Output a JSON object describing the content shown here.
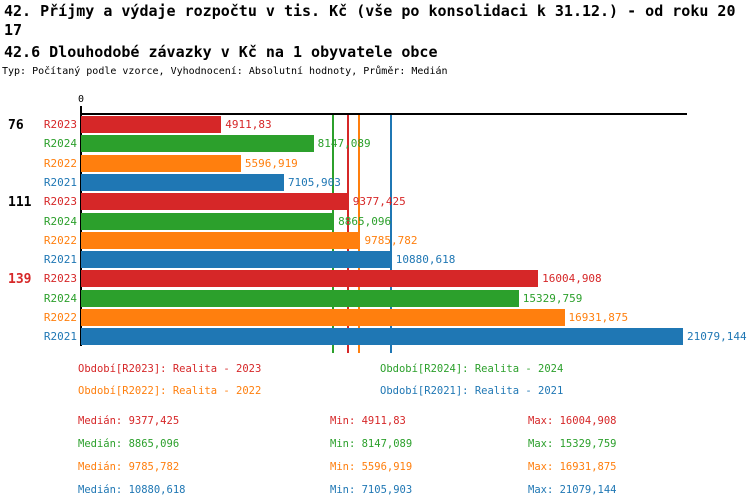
{
  "header": {
    "title_line1": "42. Příjmy a výdaje rozpočtu v tis. Kč (vše po konsolidaci k 31.12.) - od roku 20",
    "title_line2": "17",
    "subtitle": "42.6 Dlouhodobé závazky v Kč na 1 obyvatele obce",
    "meta": "Typ: Počítaný podle vzorce, Vyhodnocení: Absolutní hodnoty, Průměr: Medián"
  },
  "chart_data": {
    "type": "bar",
    "orientation": "horizontal",
    "title": "42. Příjmy a výdaje rozpočtu v tis. Kč (vše po konsolidaci k 31.12.) - od roku 2017",
    "subtitle": "42.6 Dlouhodobé závazky v Kč na 1 obyvatele obce",
    "xlabel": "",
    "ylabel": "",
    "x_axis": {
      "zero_label": "0",
      "xlim": [
        0,
        21250
      ],
      "grid": false
    },
    "series_order": [
      "R2023",
      "R2024",
      "R2022",
      "R2021"
    ],
    "series_colors": {
      "R2023": "#d62728",
      "R2024": "#2ca02c",
      "R2022": "#ff7f0e",
      "R2021": "#1f77b4"
    },
    "groups": [
      {
        "label": "76",
        "label_color": "#000000",
        "bars": [
          {
            "series": "R2023",
            "value": 4911.83,
            "value_label": "4911,83"
          },
          {
            "series": "R2024",
            "value": 8147.089,
            "value_label": "8147,089"
          },
          {
            "series": "R2022",
            "value": 5596.919,
            "value_label": "5596,919"
          },
          {
            "series": "R2021",
            "value": 7105.903,
            "value_label": "7105,903"
          }
        ]
      },
      {
        "label": "111",
        "label_color": "#000000",
        "bars": [
          {
            "series": "R2023",
            "value": 9377.425,
            "value_label": "9377,425"
          },
          {
            "series": "R2024",
            "value": 8865.096,
            "value_label": "8865,096"
          },
          {
            "series": "R2022",
            "value": 9785.782,
            "value_label": "9785,782"
          },
          {
            "series": "R2021",
            "value": 10880.618,
            "value_label": "10880,618"
          }
        ]
      },
      {
        "label": "139",
        "label_color": "#d62728",
        "bars": [
          {
            "series": "R2023",
            "value": 16004.908,
            "value_label": "16004,908"
          },
          {
            "series": "R2024",
            "value": 15329.759,
            "value_label": "15329,759"
          },
          {
            "series": "R2022",
            "value": 16931.875,
            "value_label": "16931,875"
          },
          {
            "series": "R2021",
            "value": 21079.144,
            "value_label": "21079,144"
          }
        ]
      }
    ],
    "median_lines": [
      {
        "series": "R2024",
        "value": 8865.096,
        "color": "#2ca02c"
      },
      {
        "series": "R2023",
        "value": 9377.425,
        "color": "#d62728"
      },
      {
        "series": "R2022",
        "value": 9785.782,
        "color": "#ff7f0e"
      },
      {
        "series": "R2021",
        "value": 10880.618,
        "color": "#1f77b4"
      }
    ]
  },
  "legend": {
    "items": [
      {
        "label": "Období[R2023]: Realita - 2023",
        "color": "#d62728"
      },
      {
        "label": "Období[R2024]: Realita - 2024",
        "color": "#2ca02c"
      },
      {
        "label": "Období[R2022]: Realita - 2022",
        "color": "#ff7f0e"
      },
      {
        "label": "Období[R2021]: Realita - 2021",
        "color": "#1f77b4"
      }
    ]
  },
  "stats": {
    "rows": [
      {
        "median": "Medián: 9377,425",
        "min": "Min: 4911,83",
        "max": "Max: 16004,908",
        "color": "#d62728"
      },
      {
        "median": "Medián: 8865,096",
        "min": "Min: 8147,089",
        "max": "Max: 15329,759",
        "color": "#2ca02c"
      },
      {
        "median": "Medián: 9785,782",
        "min": "Min: 5596,919",
        "max": "Max: 16931,875",
        "color": "#ff7f0e"
      },
      {
        "median": "Medián: 10880,618",
        "min": "Min: 7105,903",
        "max": "Max: 21079,144",
        "color": "#1f77b4"
      }
    ]
  }
}
